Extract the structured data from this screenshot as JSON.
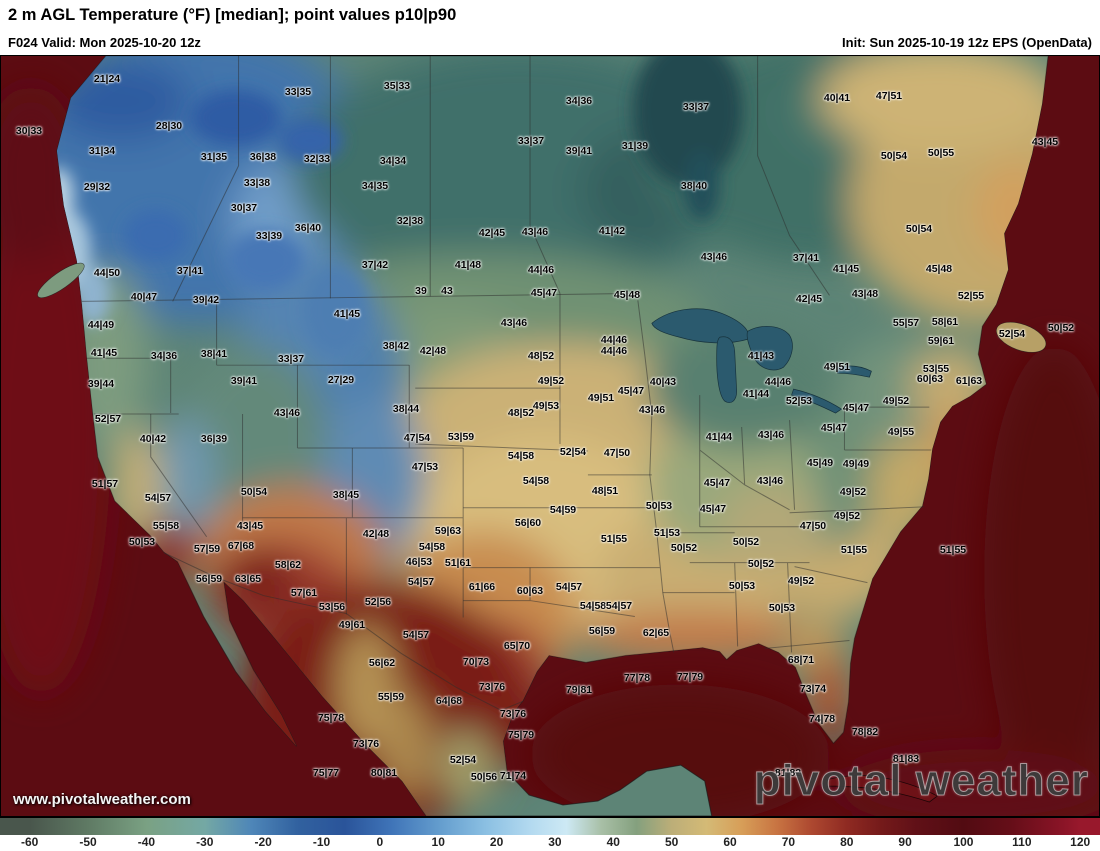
{
  "header": {
    "title": "2 m AGL Temperature (°F) [median]; point values p10|p90",
    "left_info": "F024 Valid: Mon 2025-10-20 12z",
    "right_info": "Init: Sun 2025-10-19 12z EPS (OpenData)"
  },
  "watermark": {
    "url_text": "www.pivotalweather.com",
    "brand_text": "pivotal weather"
  },
  "colorbar": {
    "tick_min": -60,
    "tick_step": 10,
    "ticks": [
      "-60",
      "-50",
      "-40",
      "-30",
      "-20",
      "-10",
      "0",
      "10",
      "20",
      "30",
      "40",
      "50",
      "60",
      "70",
      "80",
      "90",
      "100",
      "110",
      "120"
    ],
    "stops": [
      [
        -60,
        "#49564c"
      ],
      [
        -50,
        "#5f7a64"
      ],
      [
        -40,
        "#7aa183"
      ],
      [
        -30,
        "#74a8a4"
      ],
      [
        -22,
        "#4e86b8"
      ],
      [
        -14,
        "#31619f"
      ],
      [
        -6,
        "#2a549a"
      ],
      [
        2,
        "#3f74b8"
      ],
      [
        10,
        "#639ccd"
      ],
      [
        18,
        "#8abfe2"
      ],
      [
        26,
        "#b4daf0"
      ],
      [
        32,
        "#cde9f4"
      ],
      [
        38,
        "#a8bfa6"
      ],
      [
        44,
        "#84a07e"
      ],
      [
        50,
        "#bcae78"
      ],
      [
        56,
        "#d4ba76"
      ],
      [
        62,
        "#d79e58"
      ],
      [
        68,
        "#c87442"
      ],
      [
        74,
        "#ad4830"
      ],
      [
        80,
        "#8f2a22"
      ],
      [
        86,
        "#741a1a"
      ],
      [
        92,
        "#601017"
      ],
      [
        100,
        "#520b12"
      ],
      [
        108,
        "#650e18"
      ],
      [
        116,
        "#861325"
      ],
      [
        120,
        "#98182c"
      ]
    ]
  },
  "map": {
    "point_values": [
      [
        106,
        78,
        "21|24"
      ],
      [
        297,
        91,
        "33|35"
      ],
      [
        396,
        85,
        "35|33"
      ],
      [
        578,
        100,
        "34|36"
      ],
      [
        695,
        106,
        "33|37"
      ],
      [
        836,
        97,
        "40|41"
      ],
      [
        888,
        95,
        "47|51"
      ],
      [
        28,
        130,
        "30|33"
      ],
      [
        168,
        125,
        "28|30"
      ],
      [
        101,
        150,
        "31|34"
      ],
      [
        213,
        156,
        "31|35"
      ],
      [
        262,
        156,
        "36|38"
      ],
      [
        316,
        158,
        "32|33"
      ],
      [
        392,
        160,
        "34|34"
      ],
      [
        530,
        140,
        "33|37"
      ],
      [
        578,
        150,
        "39|41"
      ],
      [
        634,
        145,
        "31|39"
      ],
      [
        893,
        155,
        "50|54"
      ],
      [
        940,
        152,
        "50|55"
      ],
      [
        1044,
        141,
        "43|45"
      ],
      [
        96,
        186,
        "29|32"
      ],
      [
        256,
        182,
        "33|38"
      ],
      [
        374,
        185,
        "34|35"
      ],
      [
        693,
        185,
        "38|40"
      ],
      [
        243,
        207,
        "30|37"
      ],
      [
        918,
        228,
        "50|54"
      ],
      [
        409,
        220,
        "32|38"
      ],
      [
        268,
        235,
        "33|39"
      ],
      [
        307,
        227,
        "36|40"
      ],
      [
        491,
        232,
        "42|45"
      ],
      [
        534,
        231,
        "43|46"
      ],
      [
        611,
        230,
        "41|42"
      ],
      [
        189,
        270,
        "37|41"
      ],
      [
        106,
        272,
        "44|50"
      ],
      [
        374,
        264,
        "37|42"
      ],
      [
        467,
        264,
        "41|48"
      ],
      [
        540,
        269,
        "44|46"
      ],
      [
        713,
        256,
        "43|46"
      ],
      [
        805,
        257,
        "37|41"
      ],
      [
        845,
        268,
        "41|45"
      ],
      [
        938,
        268,
        "45|48"
      ],
      [
        143,
        296,
        "40|47"
      ],
      [
        205,
        299,
        "39|42"
      ],
      [
        420,
        290,
        "39"
      ],
      [
        446,
        290,
        "43"
      ],
      [
        543,
        292,
        "45|47"
      ],
      [
        626,
        294,
        "45|48"
      ],
      [
        808,
        298,
        "42|45"
      ],
      [
        864,
        293,
        "43|48"
      ],
      [
        970,
        295,
        "52|55"
      ],
      [
        905,
        322,
        "55|57"
      ],
      [
        944,
        321,
        "58|61"
      ],
      [
        100,
        324,
        "44|49"
      ],
      [
        346,
        313,
        "41|45"
      ],
      [
        513,
        322,
        "43|46"
      ],
      [
        613,
        339,
        "44|46"
      ],
      [
        940,
        340,
        "59|61"
      ],
      [
        1011,
        333,
        "52|54"
      ],
      [
        1060,
        327,
        "50|52"
      ],
      [
        103,
        352,
        "41|45"
      ],
      [
        163,
        355,
        "34|36"
      ],
      [
        213,
        353,
        "38|41"
      ],
      [
        290,
        358,
        "33|37"
      ],
      [
        395,
        345,
        "38|42"
      ],
      [
        432,
        350,
        "42|48"
      ],
      [
        540,
        355,
        "48|52"
      ],
      [
        613,
        350,
        "44|46"
      ],
      [
        760,
        355,
        "41|43"
      ],
      [
        777,
        381,
        "44|46"
      ],
      [
        836,
        366,
        "49|51"
      ],
      [
        935,
        368,
        "53|55"
      ],
      [
        100,
        383,
        "39|44"
      ],
      [
        243,
        380,
        "39|41"
      ],
      [
        340,
        379,
        "27|29"
      ],
      [
        550,
        380,
        "49|52"
      ],
      [
        600,
        397,
        "49|51"
      ],
      [
        662,
        381,
        "40|43"
      ],
      [
        630,
        390,
        "45|47"
      ],
      [
        651,
        409,
        "43|46"
      ],
      [
        755,
        393,
        "41|44"
      ],
      [
        798,
        400,
        "52|53"
      ],
      [
        929,
        378,
        "60|63"
      ],
      [
        968,
        380,
        "61|63"
      ],
      [
        895,
        400,
        "49|52"
      ],
      [
        855,
        407,
        "45|47"
      ],
      [
        107,
        418,
        "52|57"
      ],
      [
        286,
        412,
        "43|46"
      ],
      [
        405,
        408,
        "38|44"
      ],
      [
        520,
        412,
        "48|52"
      ],
      [
        545,
        405,
        "49|53"
      ],
      [
        152,
        438,
        "40|42"
      ],
      [
        213,
        438,
        "36|39"
      ],
      [
        416,
        437,
        "47|54"
      ],
      [
        460,
        436,
        "53|59"
      ],
      [
        718,
        436,
        "41|44"
      ],
      [
        770,
        434,
        "43|46"
      ],
      [
        833,
        427,
        "45|47"
      ],
      [
        900,
        431,
        "49|55"
      ],
      [
        424,
        466,
        "47|53"
      ],
      [
        520,
        455,
        "54|58"
      ],
      [
        572,
        451,
        "52|54"
      ],
      [
        616,
        452,
        "47|50"
      ],
      [
        535,
        480,
        "54|58"
      ],
      [
        604,
        490,
        "48|51"
      ],
      [
        658,
        505,
        "50|53"
      ],
      [
        716,
        482,
        "45|47"
      ],
      [
        769,
        480,
        "43|46"
      ],
      [
        819,
        462,
        "45|49"
      ],
      [
        855,
        463,
        "49|49"
      ],
      [
        852,
        491,
        "49|52"
      ],
      [
        104,
        483,
        "51|57"
      ],
      [
        157,
        497,
        "54|57"
      ],
      [
        253,
        491,
        "50|54"
      ],
      [
        345,
        494,
        "38|45"
      ],
      [
        165,
        525,
        "55|58"
      ],
      [
        141,
        541,
        "50|53"
      ],
      [
        249,
        525,
        "43|45"
      ],
      [
        375,
        533,
        "42|48"
      ],
      [
        447,
        530,
        "59|63"
      ],
      [
        431,
        546,
        "54|58"
      ],
      [
        527,
        522,
        "56|60"
      ],
      [
        562,
        509,
        "54|59"
      ],
      [
        613,
        538,
        "51|55"
      ],
      [
        666,
        532,
        "51|53"
      ],
      [
        683,
        547,
        "50|52"
      ],
      [
        712,
        508,
        "45|47"
      ],
      [
        812,
        525,
        "47|50"
      ],
      [
        846,
        515,
        "49|52"
      ],
      [
        853,
        549,
        "51|55"
      ],
      [
        745,
        541,
        "50|52"
      ],
      [
        952,
        549,
        "51|55"
      ],
      [
        206,
        548,
        "57|59"
      ],
      [
        240,
        545,
        "67|68"
      ],
      [
        287,
        564,
        "58|62"
      ],
      [
        208,
        578,
        "56|59"
      ],
      [
        247,
        578,
        "63|65"
      ],
      [
        418,
        561,
        "46|53"
      ],
      [
        457,
        562,
        "51|61"
      ],
      [
        303,
        592,
        "57|61"
      ],
      [
        331,
        606,
        "53|56"
      ],
      [
        377,
        601,
        "52|56"
      ],
      [
        420,
        581,
        "54|57"
      ],
      [
        481,
        586,
        "61|66"
      ],
      [
        529,
        590,
        "60|63"
      ],
      [
        568,
        586,
        "54|57"
      ],
      [
        592,
        605,
        "54|58"
      ],
      [
        618,
        605,
        "54|57"
      ],
      [
        601,
        630,
        "56|59"
      ],
      [
        655,
        632,
        "62|65"
      ],
      [
        741,
        585,
        "50|53"
      ],
      [
        760,
        563,
        "50|52"
      ],
      [
        781,
        607,
        "50|53"
      ],
      [
        800,
        580,
        "49|52"
      ],
      [
        351,
        624,
        "49|61"
      ],
      [
        415,
        634,
        "54|57"
      ],
      [
        381,
        662,
        "56|62"
      ],
      [
        390,
        696,
        "55|59"
      ],
      [
        475,
        661,
        "70|73"
      ],
      [
        448,
        700,
        "64|68"
      ],
      [
        491,
        686,
        "73|76"
      ],
      [
        512,
        713,
        "73|76"
      ],
      [
        520,
        734,
        "75|79"
      ],
      [
        516,
        645,
        "65|70"
      ],
      [
        462,
        759,
        "52|54"
      ],
      [
        483,
        776,
        "50|56"
      ],
      [
        512,
        775,
        "71|74"
      ],
      [
        365,
        743,
        "73|76"
      ],
      [
        325,
        772,
        "75|77"
      ],
      [
        383,
        772,
        "80|81"
      ],
      [
        330,
        717,
        "75|78"
      ],
      [
        578,
        689,
        "79|81"
      ],
      [
        636,
        677,
        "77|78"
      ],
      [
        689,
        676,
        "77|79"
      ],
      [
        800,
        659,
        "68|71"
      ],
      [
        812,
        688,
        "73|74"
      ],
      [
        821,
        718,
        "74|78"
      ],
      [
        864,
        731,
        "78|82"
      ],
      [
        905,
        758,
        "81|83"
      ],
      [
        787,
        772,
        "81|82"
      ]
    ]
  }
}
